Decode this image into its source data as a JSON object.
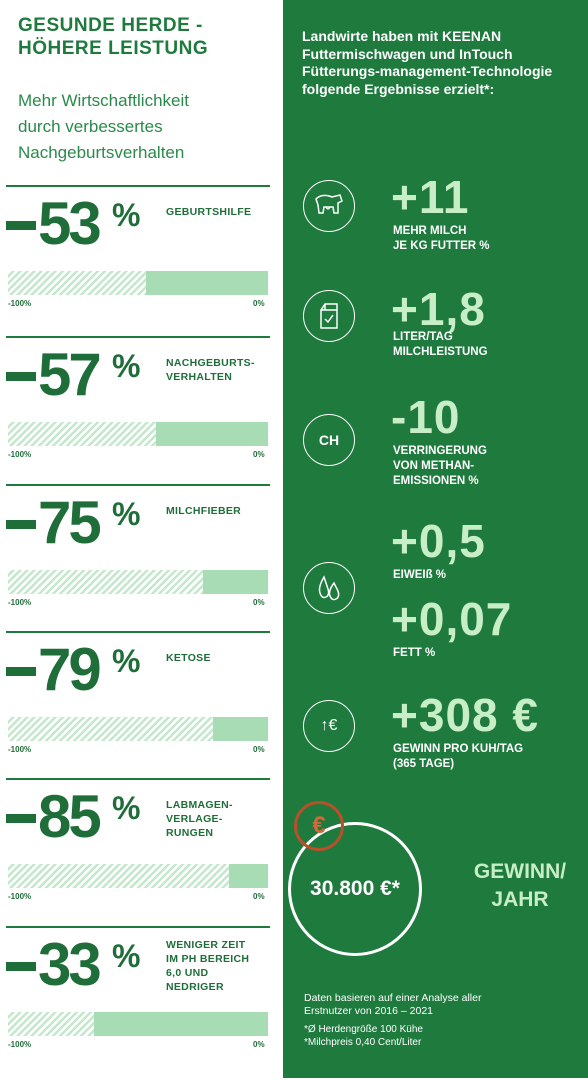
{
  "left": {
    "headline_1": "GESUNDE HERDE -",
    "headline_2": "HÖHERE LEISTUNG",
    "sub_1": "Mehr Wirtschaftlichkeit",
    "sub_2": "durch verbessertes",
    "sub_3": "Nachgeburtsverhalten",
    "stats": [
      {
        "value": "53",
        "pct": "%",
        "label": "GEBURTSHILFE",
        "reduction": 0.53,
        "lo": "-100%",
        "hi": "0%"
      },
      {
        "value": "57",
        "pct": "%",
        "label": "NACHGEBURTS-\nVERHALTEN",
        "reduction": 0.57,
        "lo": "-100%",
        "hi": "0%"
      },
      {
        "value": "75",
        "pct": "%",
        "label": "MILCHFIEBER",
        "reduction": 0.75,
        "lo": "-100%",
        "hi": "0%"
      },
      {
        "value": "79",
        "pct": "%",
        "label": "KETOSE",
        "reduction": 0.79,
        "lo": "-100%",
        "hi": "0%"
      },
      {
        "value": "85",
        "pct": "%",
        "label": "LABMAGEN-\nVERLAGE-\nRUNGEN",
        "reduction": 0.85,
        "lo": "-100%",
        "hi": "0%"
      },
      {
        "value": "33",
        "pct": "%",
        "label": "WENIGER ZEIT\nIM PH BEREICH\n6,0 UND\nNEDRIGER",
        "reduction": 0.33,
        "lo": "-100%",
        "hi": "0%"
      }
    ]
  },
  "right": {
    "intro": "Landwirte haben mit KEENAN Futtermischwagen und InTouch Fütterungs-management-Technologie folgende Ergebnisse erzielt*:",
    "items": [
      {
        "big": "+11",
        "small": "MEHR MILCH\nJE KG FUTTER %",
        "icon": "cow-icon"
      },
      {
        "big": "+1,8",
        "small": "LITER/TAG\nMILCHLEISTUNG",
        "icon": "milk-carton-icon"
      },
      {
        "big": "-10",
        "small": "VERRINGERUNG\nVON METHAN-\nEMISSIONEN %",
        "icon": "methane-cloud-icon",
        "icon_text": "CH"
      },
      {
        "big": "+0,5",
        "small": "EIWEIß %",
        "icon": "droplets-icon"
      },
      {
        "big": "+0,07",
        "small": "FETT %"
      },
      {
        "big": "+308 €",
        "small": "GEWINN PRO KUH/TAG\n(365 TAGE)",
        "icon": "euro-up-icon",
        "icon_text": "↑€"
      }
    ],
    "euro_badge": "€",
    "circle_value": "30.800 €*",
    "gewinn_1": "GEWINN/",
    "gewinn_2": "JAHR",
    "footnote_1": "Daten basieren auf einer Analyse aller",
    "footnote_2": "Erstnutzer von 2016 – 2021",
    "footnote_3": "*Ø Herdengröße 100 Kühe",
    "footnote_4": "*Milchpreis 0,40 Cent/Liter"
  },
  "colors": {
    "brand_green": "#1f7a3e",
    "light_green": "#c8eec8",
    "bar_green": "#a8dcb4",
    "euro_orange": "#b8502a"
  }
}
